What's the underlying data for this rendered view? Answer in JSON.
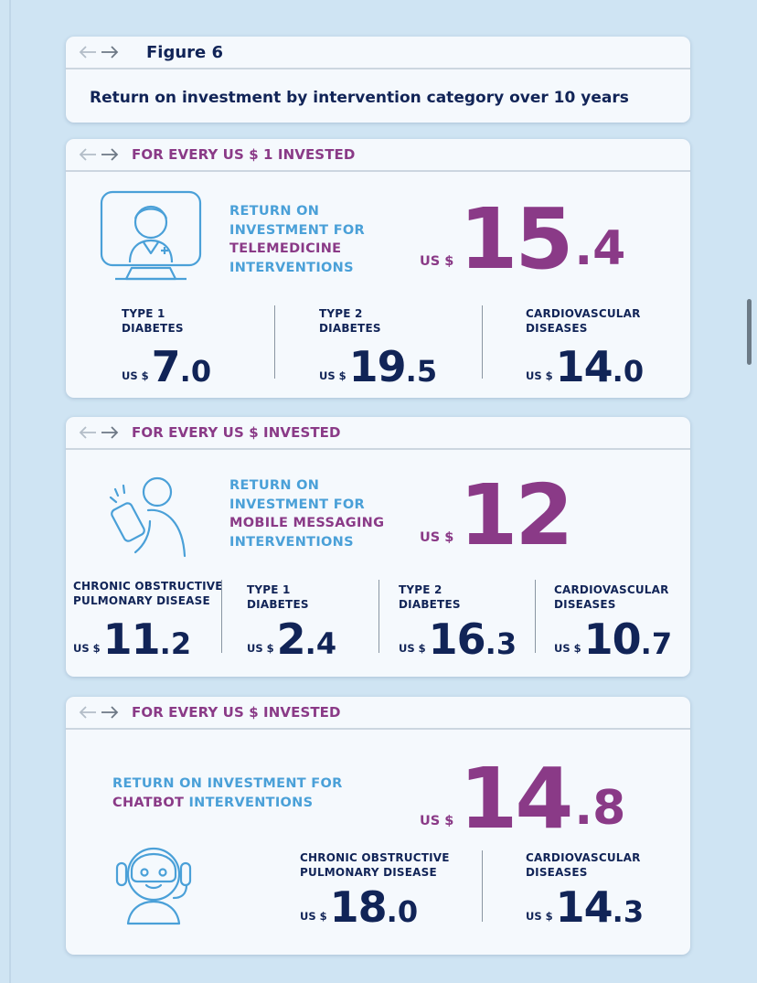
{
  "figure": {
    "label": "Figure 6",
    "title": "Return on investment by intervention category over 10 years"
  },
  "telemedicine": {
    "header": "FOR EVERY US $ 1 INVESTED",
    "icon": "telemedicine-doctor-icon",
    "return_lines": [
      "RETURN ON",
      "INVESTMENT FOR",
      "TELEMEDICINE",
      "INTERVENTIONS"
    ],
    "main": {
      "currency": "US $",
      "int": "15",
      "dec": ".4"
    },
    "breakdown": [
      {
        "label_lines": [
          "TYPE 1",
          "DIABETES"
        ],
        "currency": "US $",
        "int": "7",
        "dec": ".0"
      },
      {
        "label_lines": [
          "TYPE 2",
          "DIABETES"
        ],
        "currency": "US $",
        "int": "19",
        "dec": ".5"
      },
      {
        "label_lines": [
          "CARDIOVASCULAR",
          "DISEASES"
        ],
        "currency": "US $",
        "int": "14",
        "dec": ".0"
      }
    ]
  },
  "mobile": {
    "header": "FOR EVERY US $ INVESTED",
    "icon": "mobile-phone-user-icon",
    "return_lines": [
      "RETURN ON",
      "INVESTMENT FOR",
      "MOBILE MESSAGING",
      "INTERVENTIONS"
    ],
    "main": {
      "currency": "US $",
      "int": "12"
    },
    "breakdown": [
      {
        "label_lines": [
          "CHRONIC OBSTRUCTIVE",
          "PULMONARY DISEASE"
        ],
        "currency": "US $",
        "int": "11",
        "dec": ".2"
      },
      {
        "label_lines": [
          "TYPE 1",
          "DIABETES"
        ],
        "currency": "US $",
        "int": "2",
        "dec": ".4"
      },
      {
        "label_lines": [
          "TYPE 2",
          "DIABETES"
        ],
        "currency": "US $",
        "int": "16",
        "dec": ".3"
      },
      {
        "label_lines": [
          "CARDIOVASCULAR",
          "DISEASES"
        ],
        "currency": "US $",
        "int": "10",
        "dec": ".7"
      }
    ]
  },
  "chatbot": {
    "header": "FOR EVERY US $ INVESTED",
    "icon": "chatbot-robot-icon",
    "return_line1": "RETURN ON INVESTMENT FOR",
    "return_line2_a": "CHATBOT",
    "return_line2_b": " INTERVENTIONS",
    "main": {
      "currency": "US $",
      "int": "14",
      "dec": ".8"
    },
    "breakdown": [
      {
        "label_lines": [
          "CHRONIC OBSTRUCTIVE",
          "PULMONARY DISEASE"
        ],
        "currency": "US $",
        "int": "18",
        "dec": ".0"
      },
      {
        "label_lines": [
          "CARDIOVASCULAR",
          "DISEASES"
        ],
        "currency": "US $",
        "int": "14",
        "dec": ".3"
      }
    ]
  },
  "colors": {
    "background": "#cfe4f3",
    "card": "#f5f9fd",
    "navy": "#112457",
    "magenta": "#8a3a87",
    "blue": "#4aa0d8"
  }
}
